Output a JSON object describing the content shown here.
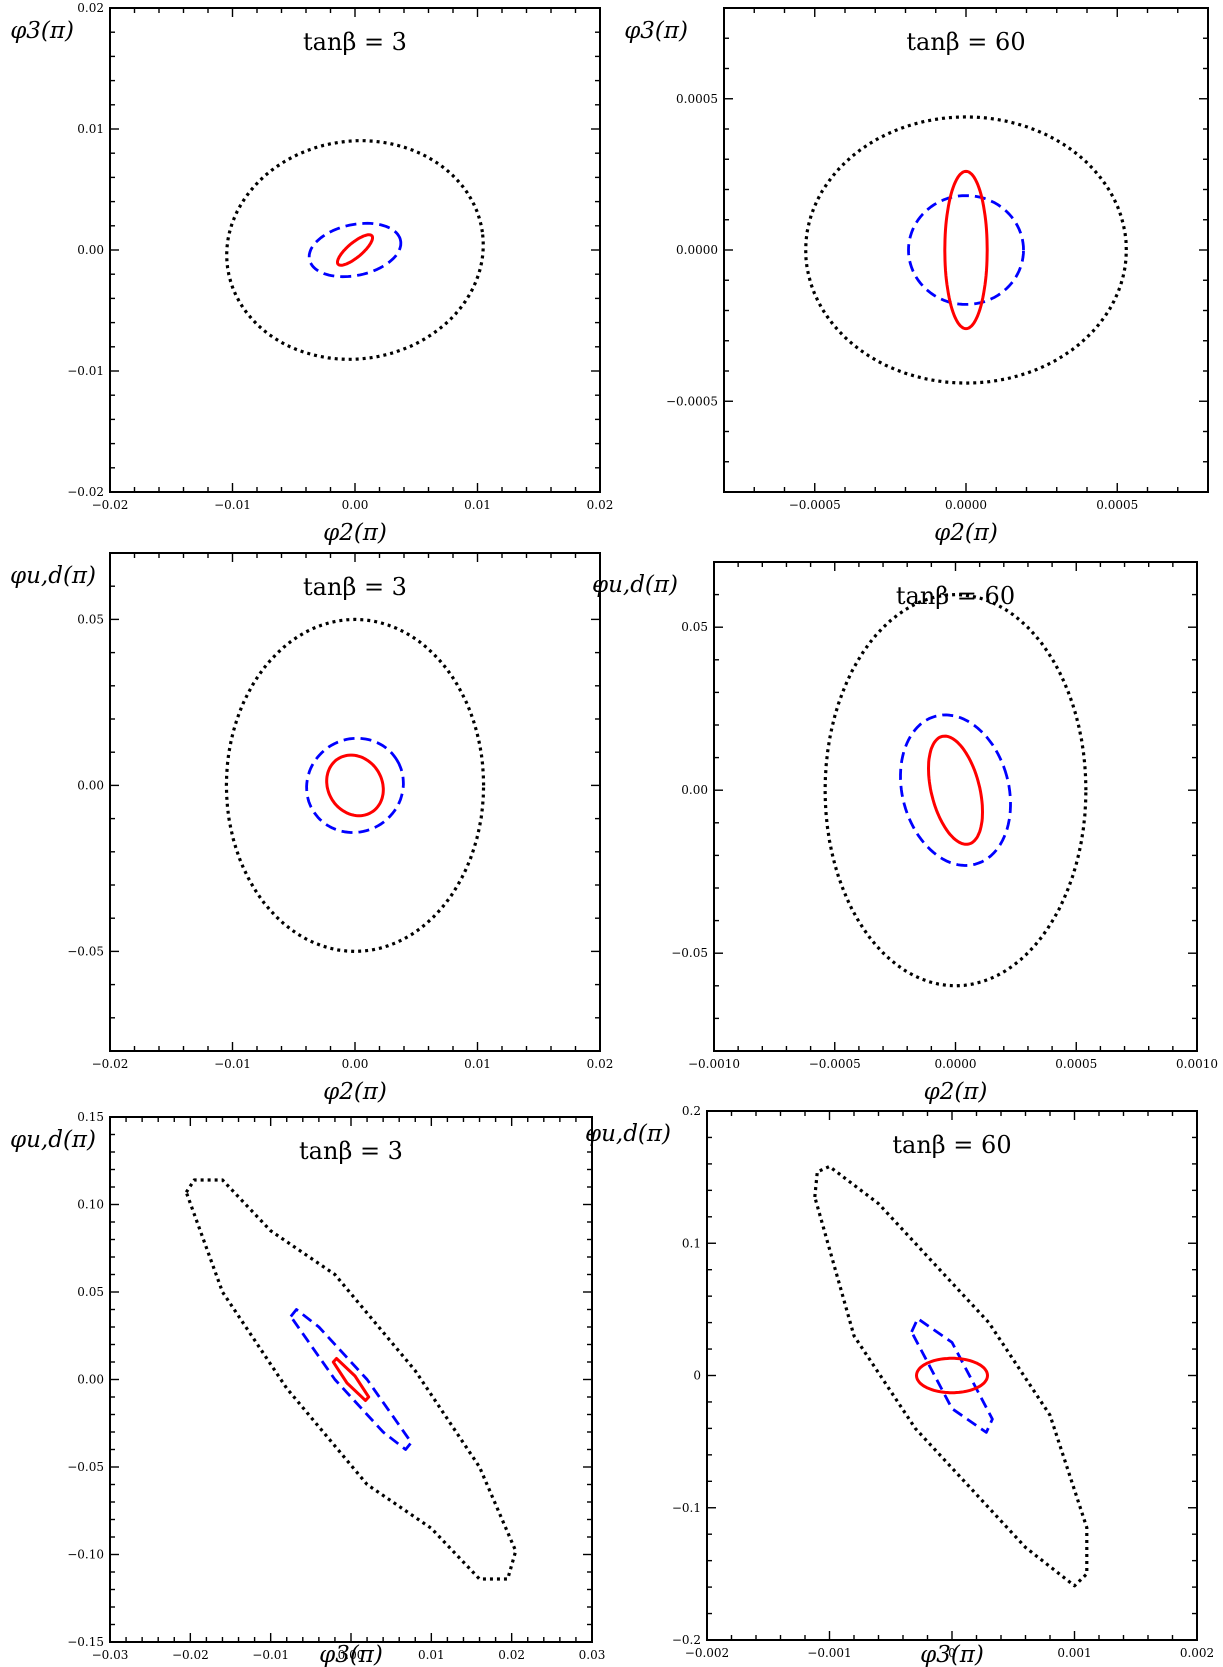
{
  "figure": {
    "panels": [
      {
        "id": "p1",
        "title": "tanβ = 3",
        "xlabel": "φ2(π)",
        "ylabel": "φ3(π)",
        "xlim": [
          -0.02,
          0.02
        ],
        "ylim": [
          -0.02,
          0.02
        ],
        "xticks": [
          -0.02,
          -0.01,
          0,
          0.01,
          0.02
        ],
        "xtick_labels": [
          "−0.02",
          "−0.01",
          "0.00",
          "0.01",
          "0.02"
        ],
        "yticks": [
          -0.02,
          -0.01,
          0,
          0.01,
          0.02
        ],
        "ytick_labels": [
          "−0.02",
          "−0.01",
          "0.00",
          "0.01",
          "0.02"
        ],
        "contours": [
          {
            "style": "dotted",
            "color": "#000000",
            "shape": "ellipse",
            "cx": 0.0,
            "cy": 0.0,
            "rx": 0.0105,
            "ry": 0.009,
            "angle": -8
          },
          {
            "style": "dashed",
            "color": "#0000ff",
            "shape": "ellipse",
            "cx": 0.0,
            "cy": 0.0,
            "rx": 0.0038,
            "ry": 0.0021,
            "angle": -12
          },
          {
            "style": "solid",
            "color": "#ff0000",
            "shape": "ellipse",
            "cx": 0.0,
            "cy": 0.0,
            "rx": 0.0018,
            "ry": 0.0006,
            "angle": -40
          }
        ]
      },
      {
        "id": "p2",
        "title": "tanβ = 60",
        "xlabel": "φ2(π)",
        "ylabel": "φ3(π)",
        "xlim": [
          -0.0008,
          0.0008
        ],
        "ylim": [
          -0.0008,
          0.0008
        ],
        "xticks": [
          -0.0005,
          0,
          0.0005
        ],
        "xtick_labels": [
          "−0.0005",
          "0.0000",
          "0.0005"
        ],
        "yticks": [
          -0.0005,
          0,
          0.0005
        ],
        "ytick_labels": [
          "−0.0005",
          "0.0000",
          "0.0005"
        ],
        "contours": [
          {
            "style": "dotted",
            "color": "#000000",
            "shape": "ellipse",
            "cx": 0.0,
            "cy": 0.0,
            "rx": 0.00053,
            "ry": 0.00044,
            "angle": 0
          },
          {
            "style": "dashed",
            "color": "#0000ff",
            "shape": "ellipse",
            "cx": 0.0,
            "cy": 0.0,
            "rx": 0.00019,
            "ry": 0.00018,
            "angle": 0
          },
          {
            "style": "solid",
            "color": "#ff0000",
            "shape": "ellipse",
            "cx": 0.0,
            "cy": 0.0,
            "rx": 7e-05,
            "ry": 0.00026,
            "angle": 0
          }
        ]
      },
      {
        "id": "p3",
        "title": "tanβ = 3",
        "xlabel": "φ2(π)",
        "ylabel": "φu,d(π)",
        "xlim": [
          -0.02,
          0.02
        ],
        "ylim": [
          -0.08,
          0.07
        ],
        "xticks": [
          -0.02,
          -0.01,
          0,
          0.01,
          0.02
        ],
        "xtick_labels": [
          "−0.02",
          "−0.01",
          "0.00",
          "0.01",
          "0.02"
        ],
        "yticks": [
          -0.05,
          0,
          0.05
        ],
        "ytick_labels": [
          "−0.05",
          "0.00",
          "0.05"
        ],
        "contours": [
          {
            "style": "dotted",
            "color": "#000000",
            "shape": "ellipse",
            "cx": 0.0,
            "cy": 0.0,
            "rx": 0.0105,
            "ry": 0.05,
            "angle": 0
          },
          {
            "style": "dashed",
            "color": "#0000ff",
            "shape": "ellipse",
            "cx": 0.0,
            "cy": 0.0,
            "rx": 0.004,
            "ry": 0.014,
            "angle": -30
          },
          {
            "style": "solid",
            "color": "#ff0000",
            "shape": "ellipse",
            "cx": 0.0,
            "cy": 0.0,
            "rx": 0.0022,
            "ry": 0.0095,
            "angle": -32
          }
        ]
      },
      {
        "id": "p4",
        "title": "tanβ = 60",
        "xlabel": "φ2(π)",
        "ylabel": "φu,d(π)",
        "xlim": [
          -0.001,
          0.001
        ],
        "ylim": [
          -0.08,
          0.07
        ],
        "xticks": [
          -0.001,
          -0.0005,
          0,
          0.0005,
          0.001
        ],
        "xtick_labels": [
          "−0.0010",
          "−0.0005",
          "0.0000",
          "0.0005",
          "0.0010"
        ],
        "yticks": [
          -0.05,
          0,
          0.05
        ],
        "ytick_labels": [
          "−0.05",
          "0.00",
          "0.05"
        ],
        "contours": [
          {
            "style": "dotted",
            "color": "#000000",
            "shape": "ellipse",
            "cx": 0.0,
            "cy": 0.0,
            "rx": 0.00054,
            "ry": 0.06,
            "angle": 0
          },
          {
            "style": "dashed",
            "color": "#0000ff",
            "shape": "ellipse",
            "cx": 0.0,
            "cy": 0.0,
            "rx": 0.00022,
            "ry": 0.0235,
            "angle": -15
          },
          {
            "style": "solid",
            "color": "#ff0000",
            "shape": "ellipse",
            "cx": 0.0,
            "cy": 0.0,
            "rx": 0.0001,
            "ry": 0.017,
            "angle": -14
          }
        ]
      },
      {
        "id": "p5",
        "title": "tanβ = 3",
        "xlabel": "φ3(π)",
        "ylabel": "φu,d(π)",
        "xlim": [
          -0.03,
          0.03
        ],
        "ylim": [
          -0.15,
          0.15
        ],
        "xticks": [
          -0.03,
          -0.02,
          -0.01,
          0,
          0.01,
          0.02,
          0.03
        ],
        "xtick_labels": [
          "−0.03",
          "−0.02",
          "−0.01",
          "0.00",
          "0.01",
          "0.02",
          "0.03"
        ],
        "yticks": [
          -0.15,
          -0.1,
          -0.05,
          0,
          0.05,
          0.1,
          0.15
        ],
        "ytick_labels": [
          "−0.15",
          "−0.10",
          "−0.05",
          "0.00",
          "0.05",
          "0.10",
          "0.15"
        ],
        "contours": [
          {
            "style": "dotted",
            "color": "#000000",
            "shape": "polygon",
            "points": [
              [
                -0.0205,
                0.107
              ],
              [
                -0.0195,
                0.114
              ],
              [
                -0.016,
                0.114
              ],
              [
                -0.01,
                0.085
              ],
              [
                -0.002,
                0.06
              ],
              [
                0.008,
                0.005
              ],
              [
                0.016,
                -0.05
              ],
              [
                0.0205,
                -0.098
              ],
              [
                0.0195,
                -0.114
              ],
              [
                0.016,
                -0.114
              ],
              [
                0.01,
                -0.085
              ],
              [
                0.002,
                -0.06
              ],
              [
                -0.008,
                -0.005
              ],
              [
                -0.016,
                0.05
              ]
            ]
          },
          {
            "style": "dashed",
            "color": "#0000ff",
            "shape": "polygon",
            "points": [
              [
                -0.0075,
                0.036
              ],
              [
                -0.0068,
                0.04
              ],
              [
                -0.004,
                0.03
              ],
              [
                0.002,
                0.0
              ],
              [
                0.0075,
                -0.036
              ],
              [
                0.0068,
                -0.04
              ],
              [
                0.004,
                -0.03
              ],
              [
                -0.002,
                0.0
              ]
            ]
          },
          {
            "style": "solid",
            "color": "#ff0000",
            "shape": "polygon",
            "points": [
              [
                -0.0022,
                0.01
              ],
              [
                -0.0018,
                0.012
              ],
              [
                0.0005,
                0.002
              ],
              [
                0.0022,
                -0.01
              ],
              [
                0.0018,
                -0.012
              ],
              [
                -0.0005,
                -0.002
              ]
            ]
          }
        ]
      },
      {
        "id": "p6",
        "title": "tanβ = 60",
        "xlabel": "φ3(π)",
        "ylabel": "φu,d(π)",
        "xlim": [
          -0.002,
          0.002
        ],
        "ylim": [
          -0.2,
          0.2
        ],
        "xticks": [
          -0.002,
          -0.001,
          0,
          0.001,
          0.002
        ],
        "xtick_labels": [
          "−0.002",
          "−0.001",
          "0",
          "0.001",
          "0.002"
        ],
        "yticks": [
          -0.2,
          -0.1,
          0,
          0.1,
          0.2
        ],
        "ytick_labels": [
          "−0.2",
          "−0.1",
          "0",
          "0.1",
          "0.2"
        ],
        "contours": [
          {
            "style": "dotted",
            "color": "#000000",
            "shape": "polygon",
            "points": [
              [
                -0.00112,
                0.135
              ],
              [
                -0.0011,
                0.154
              ],
              [
                -0.001,
                0.158
              ],
              [
                -0.0006,
                0.13
              ],
              [
                0.0003,
                0.04
              ],
              [
                0.0008,
                -0.03
              ],
              [
                0.0011,
                -0.115
              ],
              [
                0.0011,
                -0.15
              ],
              [
                0.001,
                -0.159
              ],
              [
                0.0006,
                -0.13
              ],
              [
                -0.0003,
                -0.04
              ],
              [
                -0.0008,
                0.03
              ]
            ]
          },
          {
            "style": "dashed",
            "color": "#0000ff",
            "shape": "polygon",
            "points": [
              [
                -0.00033,
                0.033
              ],
              [
                -0.00028,
                0.043
              ],
              [
                0.0,
                0.025
              ],
              [
                0.00033,
                -0.033
              ],
              [
                0.00028,
                -0.043
              ],
              [
                0.0,
                -0.025
              ]
            ]
          },
          {
            "style": "solid",
            "color": "#ff0000",
            "shape": "ellipse",
            "cx": 0.0,
            "cy": 0.0,
            "rx": 0.00029,
            "ry": 0.013,
            "angle": 0
          }
        ]
      }
    ]
  },
  "chart_data": [
    {
      "type": "line",
      "title": "tanβ = 3",
      "xlabel": "φ2(π)",
      "ylabel": "φ3(π)",
      "xlim": [
        -0.02,
        0.02
      ],
      "ylim": [
        -0.02,
        0.02
      ],
      "grid": false,
      "series": [
        {
          "name": "",
          "style": "dotted",
          "color": "#000000",
          "x": [
            -0.0105,
            0.0,
            0.0105,
            0.0
          ],
          "y": [
            0.0,
            0.009,
            0.0,
            -0.009
          ]
        },
        {
          "name": "",
          "style": "dashed",
          "color": "#0000ff",
          "x": [
            -0.0038,
            0.0,
            0.0038,
            0.0
          ],
          "y": [
            0.0,
            0.002,
            0.0,
            -0.002
          ]
        },
        {
          "name": "",
          "style": "solid",
          "color": "#ff0000",
          "x": [
            -0.0015,
            0.0015
          ],
          "y": [
            0.001,
            -0.001
          ]
        }
      ]
    },
    {
      "type": "line",
      "title": "tanβ = 60",
      "xlabel": "φ2(π)",
      "ylabel": "φ3(π)",
      "xlim": [
        -0.0008,
        0.0008
      ],
      "ylim": [
        -0.0008,
        0.0008
      ],
      "grid": false,
      "series": [
        {
          "name": "",
          "style": "dotted",
          "color": "#000000",
          "x": [
            -0.00053,
            0.0,
            0.00053,
            0.0
          ],
          "y": [
            0.0,
            0.00044,
            0.0,
            -0.00044
          ]
        },
        {
          "name": "",
          "style": "dashed",
          "color": "#0000ff",
          "x": [
            -0.00019,
            0.0,
            0.00019,
            0.0
          ],
          "y": [
            0.0,
            0.00018,
            0.0,
            -0.00018
          ]
        },
        {
          "name": "",
          "style": "solid",
          "color": "#ff0000",
          "x": [
            -7e-05,
            0.0,
            7e-05,
            0.0
          ],
          "y": [
            0.0,
            0.00026,
            0.0,
            -0.00026
          ]
        }
      ]
    },
    {
      "type": "line",
      "title": "tanβ = 3",
      "xlabel": "φ2(π)",
      "ylabel": "φu,d(π)",
      "xlim": [
        -0.02,
        0.02
      ],
      "ylim": [
        -0.08,
        0.07
      ],
      "grid": false,
      "series": [
        {
          "name": "",
          "style": "dotted",
          "color": "#000000",
          "x": [
            -0.0105,
            0.0,
            0.0105,
            0.0
          ],
          "y": [
            0.0,
            0.05,
            0.0,
            -0.05
          ]
        },
        {
          "name": "",
          "style": "dashed",
          "color": "#0000ff",
          "x": [
            -0.0035,
            0.0035
          ],
          "y": [
            0.015,
            -0.015
          ]
        },
        {
          "name": "",
          "style": "solid",
          "color": "#ff0000",
          "x": [
            -0.002,
            0.002
          ],
          "y": [
            0.01,
            -0.01
          ]
        }
      ]
    },
    {
      "type": "line",
      "title": "tanβ = 60",
      "xlabel": "φ2(π)",
      "ylabel": "φu,d(π)",
      "xlim": [
        -0.001,
        0.001
      ],
      "ylim": [
        -0.08,
        0.07
      ],
      "grid": false,
      "series": [
        {
          "name": "",
          "style": "dotted",
          "color": "#000000",
          "x": [
            -0.00054,
            0.0,
            0.00054,
            0.0
          ],
          "y": [
            0.0,
            0.06,
            0.0,
            -0.06
          ]
        },
        {
          "name": "",
          "style": "dashed",
          "color": "#0000ff",
          "x": [
            -0.00022,
            0.00022
          ],
          "y": [
            0.023,
            -0.023
          ]
        },
        {
          "name": "",
          "style": "solid",
          "color": "#ff0000",
          "x": [
            -0.0001,
            0.0001
          ],
          "y": [
            0.017,
            -0.017
          ]
        }
      ]
    },
    {
      "type": "line",
      "title": "tanβ = 3",
      "xlabel": "φ3(π)",
      "ylabel": "φu,d(π)",
      "xlim": [
        -0.03,
        0.03
      ],
      "ylim": [
        -0.15,
        0.15
      ],
      "grid": false,
      "series": [
        {
          "name": "",
          "style": "dotted",
          "color": "#000000",
          "x": [
            -0.0205,
            0.0205
          ],
          "y": [
            0.114,
            -0.114
          ]
        },
        {
          "name": "",
          "style": "dashed",
          "color": "#0000ff",
          "x": [
            -0.0075,
            0.0075
          ],
          "y": [
            0.04,
            -0.04
          ]
        },
        {
          "name": "",
          "style": "solid",
          "color": "#ff0000",
          "x": [
            -0.0022,
            0.0022
          ],
          "y": [
            0.012,
            -0.012
          ]
        }
      ]
    },
    {
      "type": "line",
      "title": "tanβ = 60",
      "xlabel": "φ3(π)",
      "ylabel": "φu,d(π)",
      "xlim": [
        -0.002,
        0.002
      ],
      "ylim": [
        -0.2,
        0.2
      ],
      "grid": false,
      "series": [
        {
          "name": "",
          "style": "dotted",
          "color": "#000000",
          "x": [
            -0.0011,
            0.0011
          ],
          "y": [
            0.158,
            -0.159
          ]
        },
        {
          "name": "",
          "style": "dashed",
          "color": "#0000ff",
          "x": [
            -0.0003,
            0.0003
          ],
          "y": [
            0.043,
            -0.043
          ]
        },
        {
          "name": "",
          "style": "solid",
          "color": "#ff0000",
          "x": [
            -0.00029,
            0.0,
            0.00029,
            0.0
          ],
          "y": [
            0.0,
            0.013,
            0.0,
            -0.013
          ]
        }
      ]
    }
  ]
}
